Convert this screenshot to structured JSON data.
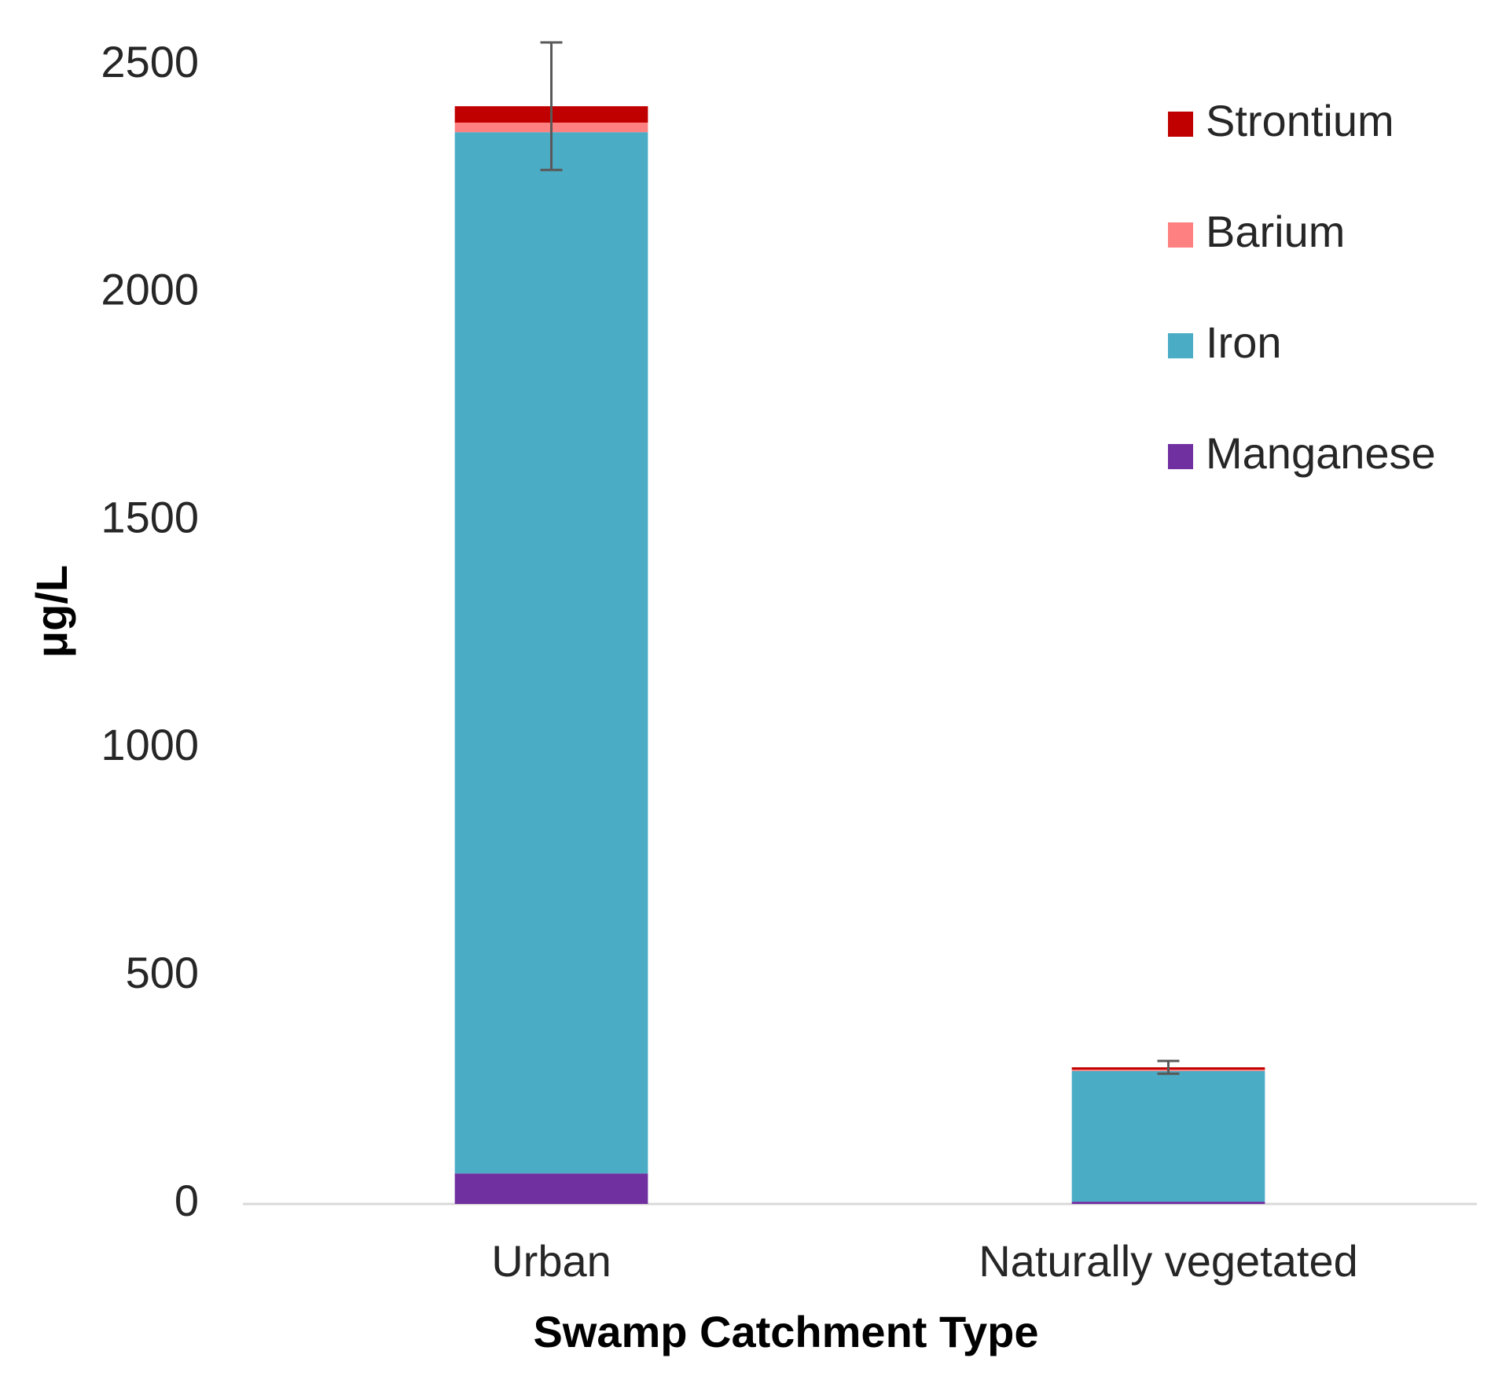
{
  "chart_data": {
    "type": "stacked_bar",
    "x_label": "Swamp Catchment Type",
    "y_label": "μg/L",
    "categories": [
      "Urban",
      "Naturally vegetated"
    ],
    "series": [
      {
        "name": "Manganese",
        "color": "#7030a0",
        "values": [
          67,
          5
        ]
      },
      {
        "name": "Iron",
        "color": "#4bacc6",
        "values": [
          2286,
          287
        ]
      },
      {
        "name": "Barium",
        "color": "#ff8080",
        "values": [
          21,
          3
        ]
      },
      {
        "name": "Strontium",
        "color": "#c00000",
        "values": [
          36,
          5
        ],
        "errors": [
          140,
          14
        ]
      }
    ],
    "ylim": [
      0,
      2500
    ],
    "yticks": [
      0,
      500,
      1000,
      1500,
      2000,
      2500
    ],
    "grid": false,
    "legend": "upper right"
  }
}
